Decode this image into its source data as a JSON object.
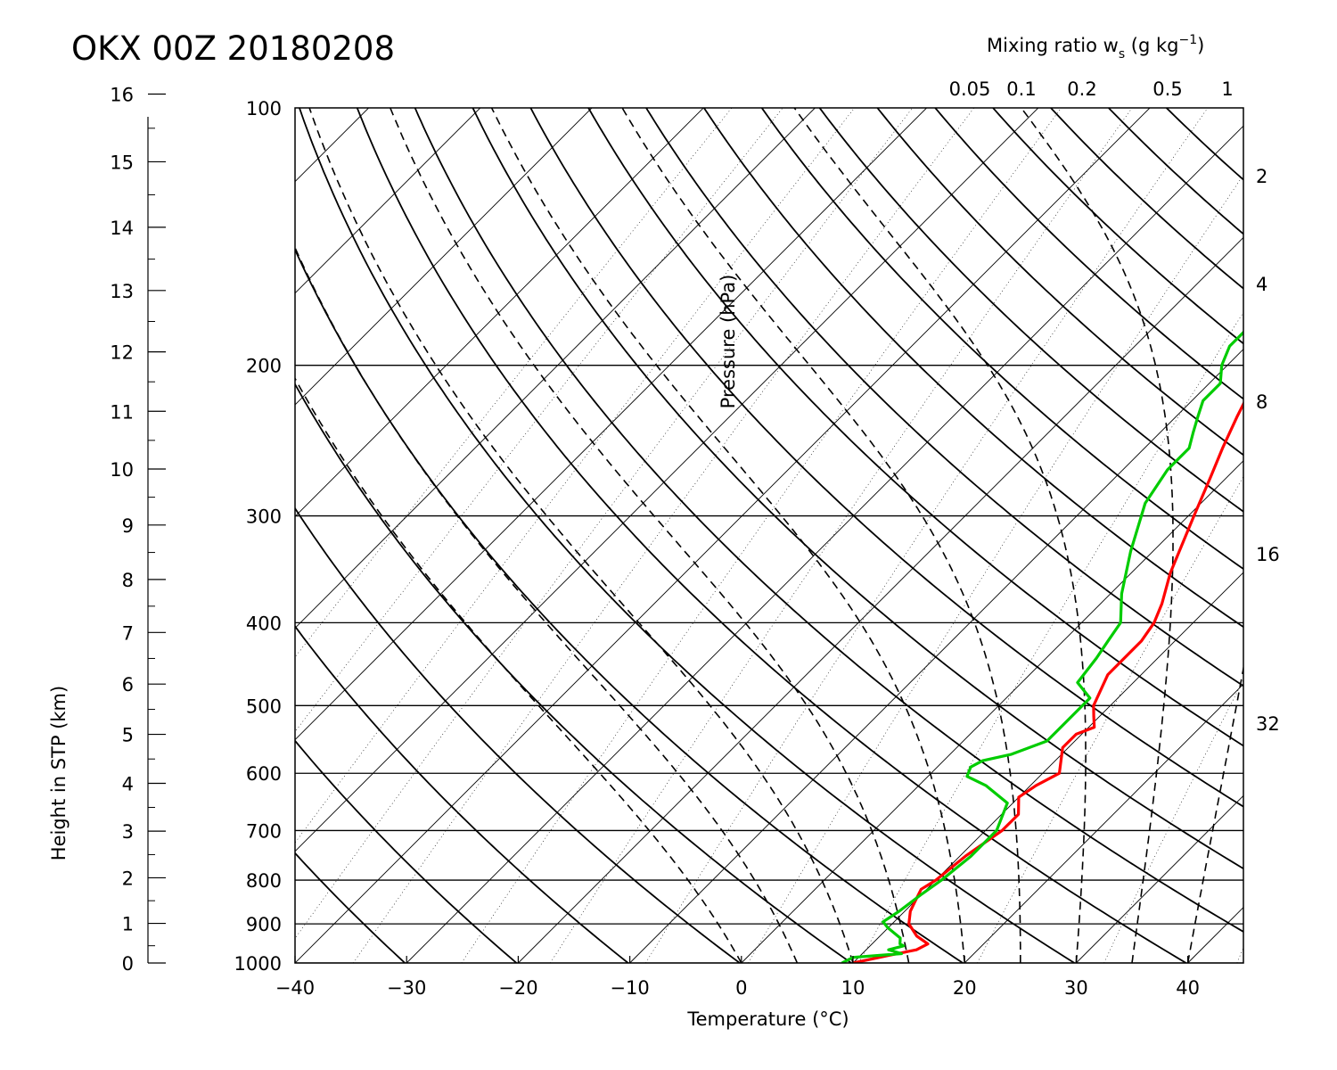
{
  "chart_data": {
    "type": "line",
    "title": "OKX 00Z 20180208",
    "xlabel": "Temperature (°C)",
    "ylabel": "Pressure (hPa)",
    "y2label": "Height in STP (km)",
    "mixing_label": {
      "prefix": "Mixing ratio w",
      "sub": "s",
      "mid": " (g kg",
      "sup": "−1",
      "suffix": ")"
    },
    "xlim": [
      -40,
      45
    ],
    "ylim": [
      1000,
      100
    ],
    "y_scale": "log",
    "x_ticks": [
      -40,
      -30,
      -20,
      -10,
      0,
      10,
      20,
      30,
      40
    ],
    "x_tick_labels": [
      "−40",
      "−30",
      "−20",
      "−10",
      "0",
      "10",
      "20",
      "30",
      "40"
    ],
    "pressure_ticks": [
      1000,
      900,
      800,
      700,
      600,
      500,
      400,
      300,
      200,
      100
    ],
    "pressure_tick_labels": [
      "1000",
      "900",
      "800",
      "700",
      "600",
      "500",
      "400",
      "300",
      "200",
      "100"
    ],
    "height_ticks": [
      0,
      1,
      2,
      3,
      4,
      5,
      6,
      7,
      8,
      9,
      10,
      11,
      12,
      13,
      14,
      15,
      16
    ],
    "height_tick_labels": [
      "0",
      "1",
      "2",
      "3",
      "4",
      "5",
      "6",
      "7",
      "8",
      "9",
      "10",
      "11",
      "12",
      "13",
      "14",
      "15",
      "16"
    ],
    "mixing_ratio_top_labels": [
      "0.05",
      "0.1",
      "0.2",
      "0.5",
      "1"
    ],
    "mixing_ratio_right_labels": [
      "2",
      "4",
      "8",
      "16",
      "32"
    ],
    "isobar_lines": [
      1000,
      900,
      800,
      700,
      600,
      500,
      400,
      300,
      200
    ],
    "skew_isotherms": true,
    "dry_adiabats": true,
    "moist_adiabats": true,
    "mixing_ratio_lines": true,
    "series": [
      {
        "color": "#ff0000",
        "points": [
          [
            1000,
            10.0
          ],
          [
            980,
            12.5
          ],
          [
            965,
            14.5
          ],
          [
            950,
            15.0
          ],
          [
            930,
            13.3
          ],
          [
            900,
            11.5
          ],
          [
            870,
            10.5
          ],
          [
            845,
            10.0
          ],
          [
            820,
            9.5
          ],
          [
            800,
            10.0
          ],
          [
            750,
            10.5
          ],
          [
            700,
            11.5
          ],
          [
            670,
            11.5
          ],
          [
            640,
            10.0
          ],
          [
            620,
            10.5
          ],
          [
            600,
            11.5
          ],
          [
            560,
            9.5
          ],
          [
            540,
            9.5
          ],
          [
            530,
            10.5
          ],
          [
            515,
            9.5
          ],
          [
            500,
            8.5
          ],
          [
            460,
            7.0
          ],
          [
            420,
            7.0
          ],
          [
            400,
            6.5
          ],
          [
            380,
            5.5
          ],
          [
            350,
            3.5
          ],
          [
            300,
            0.5
          ],
          [
            270,
            -1.5
          ],
          [
            250,
            -3.0
          ],
          [
            230,
            -4.5
          ],
          [
            210,
            -6.0
          ],
          [
            190,
            -7.0
          ],
          [
            175,
            -7.0
          ],
          [
            170,
            -5.5
          ],
          [
            168,
            -3.0
          ],
          [
            166,
            1.0
          ],
          [
            162,
            2.5
          ],
          [
            158,
            3.0
          ],
          [
            152,
            5.0
          ],
          [
            150,
            7.0
          ],
          [
            147,
            9.5
          ],
          [
            140,
            10.5
          ],
          [
            132,
            10.0
          ],
          [
            127,
            11.0
          ],
          [
            123,
            12.0
          ],
          [
            120,
            13.0
          ],
          [
            115,
            14.0
          ],
          [
            110,
            15.0
          ],
          [
            105,
            17.0
          ],
          [
            100,
            18.5
          ]
        ]
      },
      {
        "color": "#00cc00",
        "points": [
          [
            1000,
            9.0
          ],
          [
            985,
            9.5
          ],
          [
            975,
            13.5
          ],
          [
            965,
            12.0
          ],
          [
            955,
            13.0
          ],
          [
            950,
            12.5
          ],
          [
            935,
            12.0
          ],
          [
            910,
            10.0
          ],
          [
            895,
            9.0
          ],
          [
            870,
            9.5
          ],
          [
            830,
            10.0
          ],
          [
            800,
            10.5
          ],
          [
            750,
            11.0
          ],
          [
            700,
            11.0
          ],
          [
            650,
            9.5
          ],
          [
            620,
            6.0
          ],
          [
            605,
            3.5
          ],
          [
            590,
            3.0
          ],
          [
            580,
            3.5
          ],
          [
            570,
            5.5
          ],
          [
            550,
            7.5
          ],
          [
            530,
            7.5
          ],
          [
            510,
            7.5
          ],
          [
            490,
            7.5
          ],
          [
            470,
            5.0
          ],
          [
            440,
            4.5
          ],
          [
            420,
            4.0
          ],
          [
            400,
            3.5
          ],
          [
            370,
            1.0
          ],
          [
            330,
            -2.0
          ],
          [
            290,
            -5.0
          ],
          [
            265,
            -6.0
          ],
          [
            250,
            -6.0
          ],
          [
            240,
            -7.0
          ],
          [
            230,
            -8.0
          ],
          [
            220,
            -9.0
          ],
          [
            210,
            -9.0
          ],
          [
            200,
            -10.5
          ],
          [
            190,
            -11.5
          ],
          [
            180,
            -11.5
          ],
          [
            170,
            -10.0
          ],
          [
            162,
            -5.0
          ],
          [
            160,
            -4.5
          ],
          [
            157,
            -5.0
          ],
          [
            155,
            -5.0
          ],
          [
            150,
            -5.0
          ],
          [
            145,
            -5.0
          ],
          [
            140,
            -6.5
          ],
          [
            132,
            -8.0
          ],
          [
            125,
            -8.0
          ],
          [
            122,
            -7.5
          ],
          [
            115,
            -8.5
          ],
          [
            110,
            -8.0
          ],
          [
            105,
            -8.5
          ],
          [
            100,
            -9.0
          ]
        ]
      }
    ]
  }
}
